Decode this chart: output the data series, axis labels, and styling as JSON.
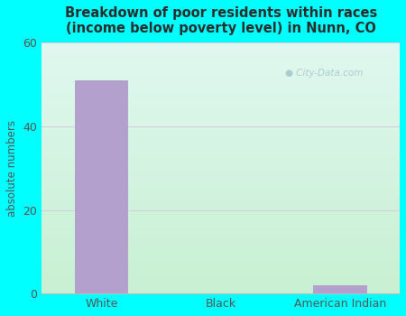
{
  "categories": [
    "White",
    "Black",
    "American Indian"
  ],
  "values": [
    51,
    0,
    2
  ],
  "bar_color": "#b3a0cc",
  "title_line1": "Breakdown of poor residents within races",
  "title_line2": "(income below poverty level) in Nunn, CO",
  "ylabel": "absolute numbers",
  "ylim": [
    0,
    60
  ],
  "yticks": [
    0,
    20,
    40,
    60
  ],
  "background_outer": "#00ffff",
  "plot_bg_topleft": "#e0f8f0",
  "plot_bg_topright": "#ffffff",
  "plot_bg_bottomleft": "#c8f0dc",
  "plot_bg_bottomright": "#d8f0d0",
  "grid_color": "#d0cce0",
  "title_color": "#2d2d2d",
  "tick_label_color": "#555555",
  "axis_label_color": "#555555",
  "bar_width": 0.45,
  "watermark_text": "City-Data.com",
  "watermark_color": "#a8c8d0",
  "figsize": [
    4.5,
    3.5
  ],
  "dpi": 100
}
